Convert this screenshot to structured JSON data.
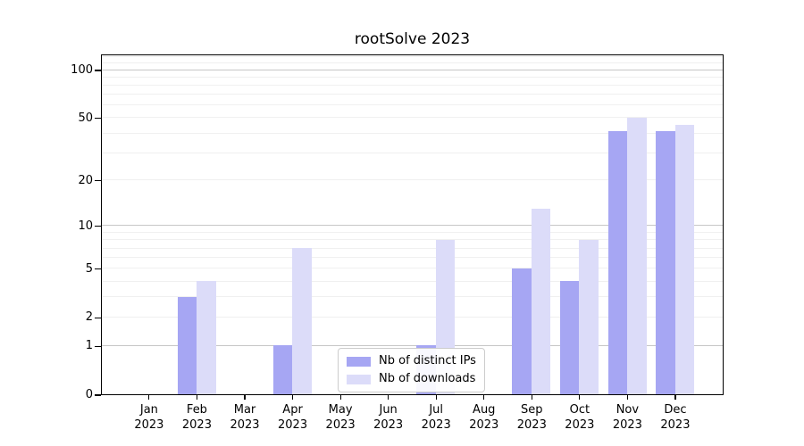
{
  "chart_data": {
    "type": "bar",
    "title": "rootSolve 2023",
    "categories": [
      "Jan",
      "Feb",
      "Mar",
      "Apr",
      "May",
      "Jun",
      "Jul",
      "Aug",
      "Sep",
      "Oct",
      "Nov",
      "Dec"
    ],
    "year_label": "2023",
    "series": [
      {
        "name": "Nb of distinct IPs",
        "color": "#a6a6f3",
        "values": [
          0,
          3,
          0,
          1,
          0,
          0,
          1,
          0,
          5,
          4,
          41,
          41
        ]
      },
      {
        "name": "Nb of downloads",
        "color": "#dcdcf9",
        "values": [
          0,
          4,
          0,
          7,
          0,
          0,
          8,
          0,
          13,
          8,
          50,
          45
        ]
      }
    ],
    "yscale": "log1p",
    "yticks": [
      0,
      1,
      2,
      5,
      10,
      20,
      50,
      100
    ],
    "ylim": [
      0,
      125
    ],
    "xlabel": "",
    "ylabel": "",
    "grid": "horizontal",
    "legend_position": "inside-bottom-center"
  },
  "colors": {
    "grid_major": "#c6c6c6",
    "grid_minor": "#f0f0f0",
    "axis": "#000000",
    "background": "#ffffff",
    "legend_border": "#cccccc"
  }
}
